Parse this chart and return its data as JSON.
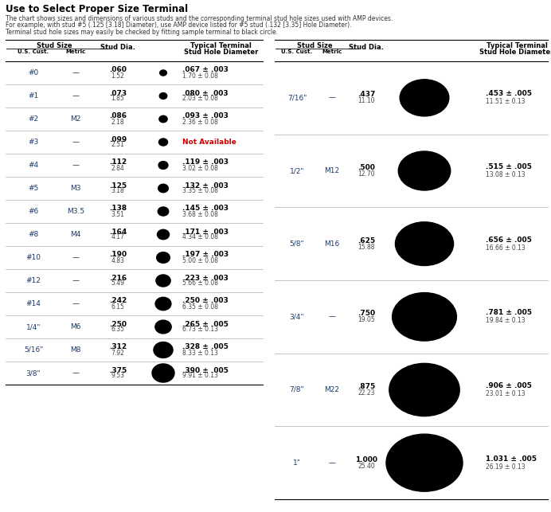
{
  "title": "Use to Select Proper Size Terminal",
  "subtitle_lines": [
    "The chart shows sizes and dimensions of various studs and the corresponding terminal stud hole sizes used with AMP devices.",
    "For example, with stud #5 (.125 [3.18] Diameter), use AMP device listed for #5 stud (.132 [3.35] Hole Diameter).",
    "Terminal stud hole sizes may easily be checked by fitting sample terminal to black circle."
  ],
  "left_rows": [
    {
      "us": "#0",
      "metric": "—",
      "dia1": ".060",
      "dia2": "1.52",
      "hole1": ".067 ± .003",
      "hole2": "1.70 ± 0.08",
      "r": 0.06,
      "na": false
    },
    {
      "us": "#1",
      "metric": "—",
      "dia1": ".073",
      "dia2": "1.85",
      "hole1": ".080 ± .003",
      "hole2": "2.03 ± 0.08",
      "r": 0.073,
      "na": false
    },
    {
      "us": "#2",
      "metric": "M2",
      "dia1": ".086",
      "dia2": "2.18",
      "hole1": ".093 ± .003",
      "hole2": "2.36 ± 0.08",
      "r": 0.086,
      "na": false
    },
    {
      "us": "#3",
      "metric": "—",
      "dia1": ".099",
      "dia2": "2.51",
      "hole1": "Not Available",
      "hole2": "",
      "r": 0.099,
      "na": true
    },
    {
      "us": "#4",
      "metric": "—",
      "dia1": ".112",
      "dia2": "2.84",
      "hole1": ".119 ± .003",
      "hole2": "3.02 ± 0.08",
      "r": 0.112,
      "na": false
    },
    {
      "us": "#5",
      "metric": "M3",
      "dia1": ".125",
      "dia2": "3.18",
      "hole1": ".132 ± .003",
      "hole2": "3.35 ± 0.08",
      "r": 0.125,
      "na": false
    },
    {
      "us": "#6",
      "metric": "M3.5",
      "dia1": ".138",
      "dia2": "3.51",
      "hole1": ".145 ± .003",
      "hole2": "3.68 ± 0.08",
      "r": 0.138,
      "na": false
    },
    {
      "us": "#8",
      "metric": "M4",
      "dia1": ".164",
      "dia2": "4.17",
      "hole1": ".171 ± .003",
      "hole2": "4.34 ± 0.08",
      "r": 0.164,
      "na": false
    },
    {
      "us": "#10",
      "metric": "—",
      "dia1": ".190",
      "dia2": "4.83",
      "hole1": ".197 ± .003",
      "hole2": "5.00 ± 0.08",
      "r": 0.19,
      "na": false
    },
    {
      "us": "#12",
      "metric": "—",
      "dia1": ".216",
      "dia2": "5.49",
      "hole1": ".223 ± .003",
      "hole2": "5.66 ± 0.08",
      "r": 0.216,
      "na": false
    },
    {
      "us": "#14",
      "metric": "—",
      "dia1": ".242",
      "dia2": "6.15",
      "hole1": ".250 ± .003",
      "hole2": "6.35 ± 0.08",
      "r": 0.242,
      "na": false
    },
    {
      "us": "1/4\"",
      "metric": "M6",
      "dia1": ".250",
      "dia2": "6.35",
      "hole1": ".265 ± .005",
      "hole2": "6.73 ± 0.13",
      "r": 0.25,
      "na": false
    },
    {
      "us": "5/16\"",
      "metric": "M8",
      "dia1": ".312",
      "dia2": "7.92",
      "hole1": ".328 ± .005",
      "hole2": "8.33 ± 0.13",
      "r": 0.312,
      "na": false
    },
    {
      "us": "3/8\"",
      "metric": "—",
      "dia1": ".375",
      "dia2": "9.53",
      "hole1": ".390 ± .005",
      "hole2": "9.91 ± 0.13",
      "r": 0.375,
      "na": false
    }
  ],
  "right_rows": [
    {
      "us": "7/16\"",
      "metric": "—",
      "dia1": ".437",
      "dia2": "11.10",
      "hole1": ".453 ± .005",
      "hole2": "11.51 ± 0.13",
      "r": 0.437
    },
    {
      "us": "1/2\"",
      "metric": "M12",
      "dia1": ".500",
      "dia2": "12.70",
      "hole1": ".515 ± .005",
      "hole2": "13.08 ± 0.13",
      "r": 0.5
    },
    {
      "us": "5/8\"",
      "metric": "M16",
      "dia1": ".625",
      "dia2": "15.88",
      "hole1": ".656 ± .005",
      "hole2": "16.66 ± 0.13",
      "r": 0.625
    },
    {
      "us": "3/4\"",
      "metric": "—",
      "dia1": ".750",
      "dia2": "19.05",
      "hole1": ".781 ± .005",
      "hole2": "19.84 ± 0.13",
      "r": 0.75
    },
    {
      "us": "7/8\"",
      "metric": "M22",
      "dia1": ".875",
      "dia2": "22.23",
      "hole1": ".906 ± .005",
      "hole2": "23.01 ± 0.13",
      "r": 0.875
    },
    {
      "us": "1\"",
      "metric": "—",
      "dia1": "1.000",
      "dia2": "25.40",
      "hole1": "1.031 ± .005",
      "hole2": "26.19 ± 0.13",
      "r": 1.0
    }
  ],
  "text_color": "#1a3a6b",
  "bold_line_color": "#003399",
  "na_color": "#cc0000",
  "line_color": "#000000",
  "gray_line": "#999999",
  "bg": "#ffffff"
}
